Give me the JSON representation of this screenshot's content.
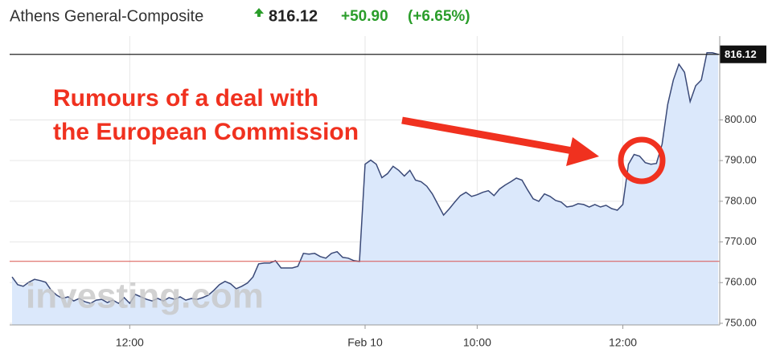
{
  "chart_data": {
    "type": "line",
    "title": "Athens General-Composite",
    "last_value": 816.12,
    "change": "+50.90",
    "change_pct": "(+6.65%)",
    "annotation": [
      "Rumours of a deal with",
      "the European Commission"
    ],
    "watermark": "investing.com",
    "reference_line": 765.22,
    "categories": [
      null,
      null,
      null,
      null,
      null,
      null,
      null,
      null,
      null,
      null,
      null,
      null,
      null,
      null,
      null,
      null,
      null,
      null,
      null,
      null,
      null,
      "12:00",
      null,
      null,
      null,
      null,
      null,
      null,
      null,
      null,
      null,
      null,
      null,
      null,
      null,
      null,
      null,
      null,
      null,
      null,
      null,
      null,
      null,
      null,
      null,
      null,
      null,
      null,
      null,
      null,
      null,
      null,
      null,
      null,
      null,
      null,
      null,
      null,
      null,
      null,
      null,
      null,
      null,
      "Feb 10",
      null,
      null,
      null,
      null,
      null,
      null,
      null,
      null,
      null,
      null,
      null,
      null,
      null,
      null,
      null,
      null,
      null,
      null,
      null,
      "10:00",
      null,
      null,
      null,
      null,
      null,
      null,
      null,
      null,
      null,
      null,
      null,
      null,
      null,
      null,
      null,
      null,
      null,
      null,
      null,
      null,
      null,
      null,
      null,
      null,
      null,
      "12:00",
      null,
      null,
      null,
      null,
      null,
      null,
      null,
      null,
      null,
      null,
      null,
      null,
      null,
      null,
      null,
      null,
      null
    ],
    "series": [
      {
        "color": "#3b4a78",
        "fill": "#dbe8fb",
        "values": [
          761.4,
          759.5,
          759.1,
          760.1,
          760.8,
          760.5,
          760.1,
          758.1,
          756.9,
          756.1,
          756.5,
          755.5,
          756.1,
          755.3,
          754.9,
          755.7,
          755.9,
          755.1,
          755.7,
          754.9,
          756.3,
          754.9,
          757.1,
          756.5,
          755.9,
          755.5,
          756.1,
          755.5,
          756.3,
          755.9,
          756.5,
          755.7,
          756.1,
          755.9,
          756.3,
          756.9,
          758.1,
          759.5,
          760.3,
          759.7,
          758.5,
          759.1,
          759.9,
          761.4,
          764.6,
          764.8,
          764.8,
          765.4,
          763.6,
          763.6,
          763.6,
          764.0,
          767.2,
          767.0,
          767.2,
          766.4,
          766.0,
          767.2,
          767.6,
          766.2,
          766.0,
          765.4,
          765.2,
          789.1,
          790.1,
          789.1,
          785.8,
          786.8,
          788.6,
          787.6,
          786.2,
          787.6,
          785.2,
          784.8,
          783.7,
          781.8,
          779.2,
          776.6,
          778.1,
          779.8,
          781.4,
          782.2,
          781.2,
          781.6,
          782.2,
          782.6,
          781.4,
          783.0,
          784.0,
          784.8,
          785.7,
          785.2,
          782.8,
          780.6,
          780.0,
          781.8,
          781.2,
          780.2,
          779.8,
          778.6,
          778.8,
          779.4,
          779.2,
          778.6,
          779.2,
          778.6,
          779.0,
          778.2,
          777.8,
          779.2,
          789.1,
          791.5,
          791.1,
          789.5,
          789.1,
          789.3,
          794.0,
          803.8,
          809.8,
          813.7,
          811.7,
          804.5,
          808.4,
          809.8,
          816.5,
          816.5,
          816.12
        ]
      }
    ],
    "ylim": [
      749.6,
      820.6
    ],
    "yticks": [
      {
        "value": 750,
        "label": "750.00"
      },
      {
        "value": 760,
        "label": "760.00"
      },
      {
        "value": 770,
        "label": "770.00"
      },
      {
        "value": 780,
        "label": "780.00"
      },
      {
        "value": 790,
        "label": "790.00"
      },
      {
        "value": 800,
        "label": "800.00"
      }
    ],
    "grid": true
  }
}
